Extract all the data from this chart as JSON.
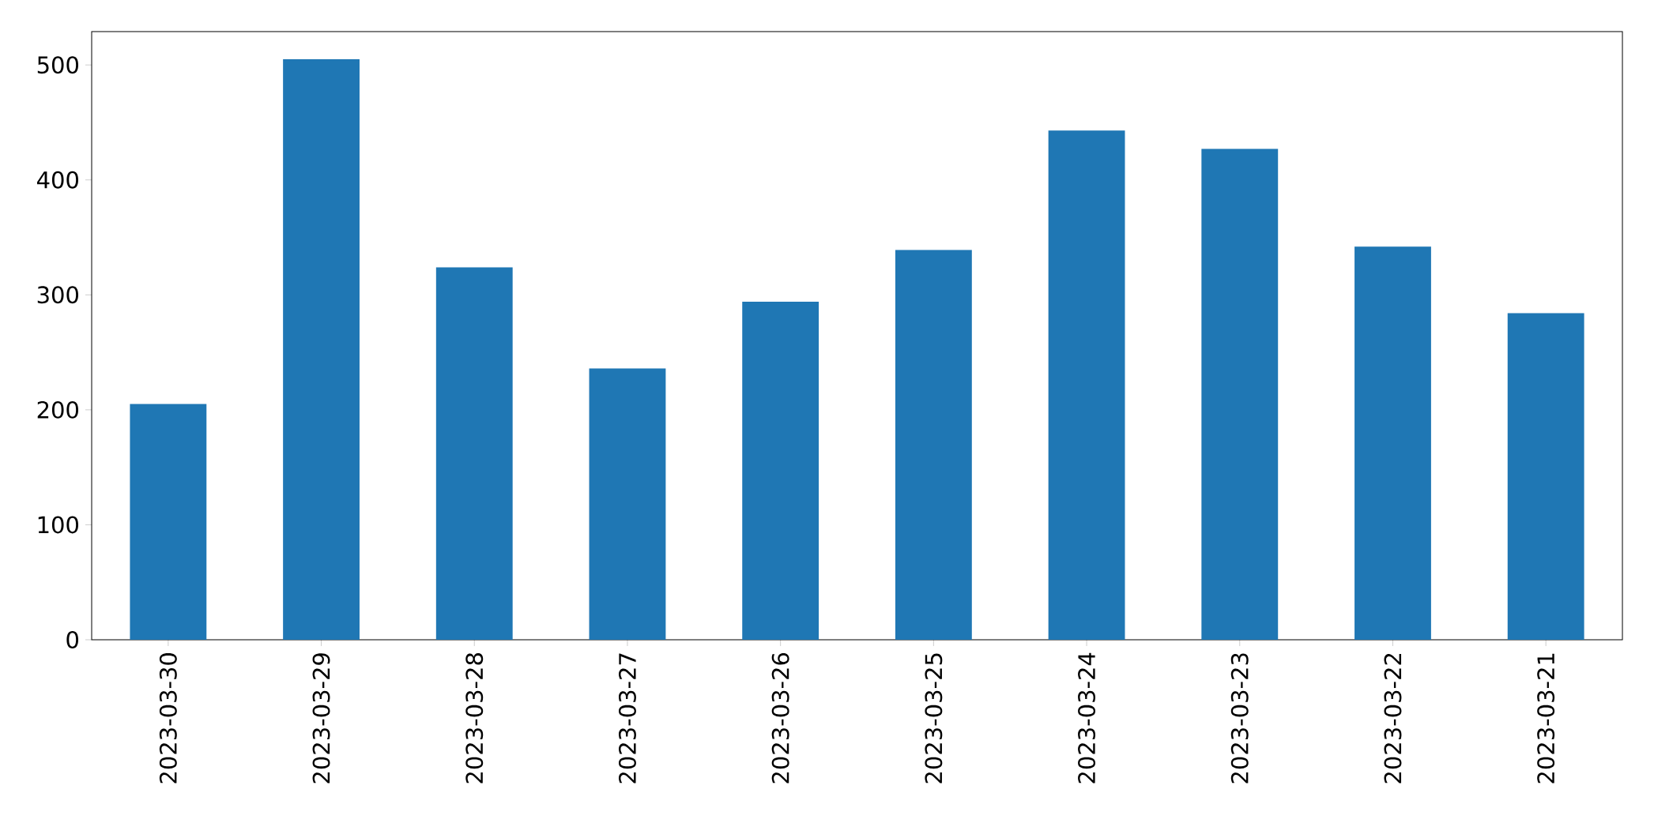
{
  "chart_data": {
    "type": "bar",
    "categories": [
      "2023-03-30",
      "2023-03-29",
      "2023-03-28",
      "2023-03-27",
      "2023-03-26",
      "2023-03-25",
      "2023-03-24",
      "2023-03-23",
      "2023-03-22",
      "2023-03-21"
    ],
    "values": [
      205,
      505,
      324,
      236,
      294,
      339,
      443,
      427,
      342,
      284
    ],
    "color": "#1f77b4",
    "ylim": [
      0,
      529
    ],
    "yticks": [
      0,
      100,
      200,
      300,
      400,
      500
    ],
    "grid": false
  }
}
